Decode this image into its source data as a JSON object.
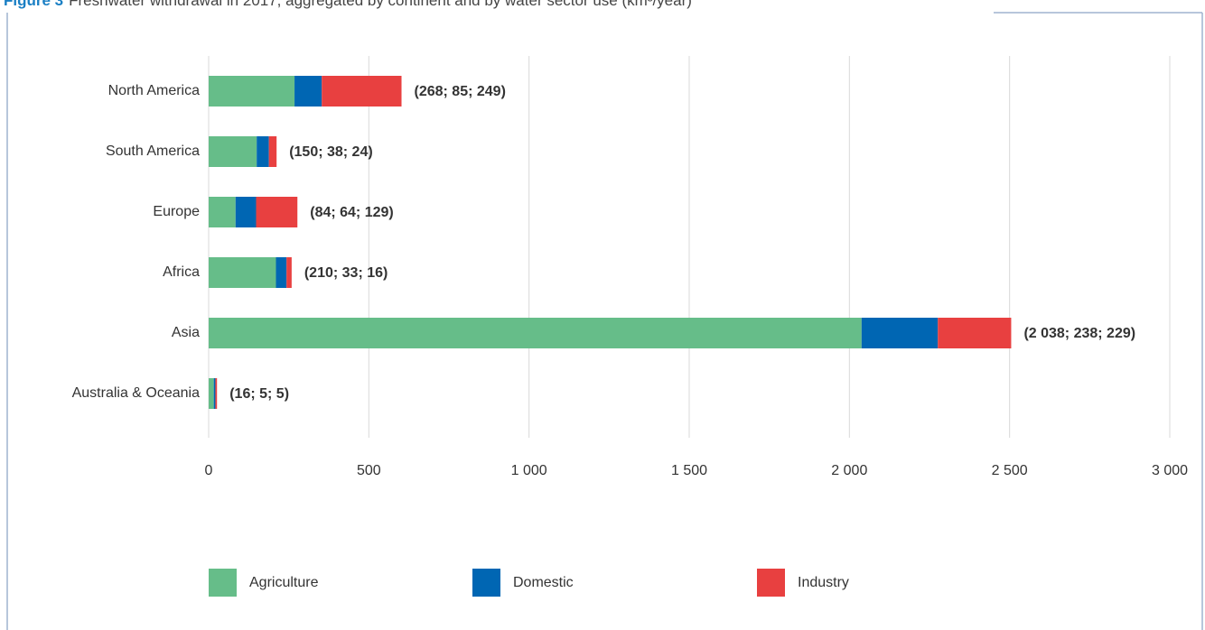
{
  "chart_data": {
    "type": "stacked_barh",
    "figure_label": "Figure 3",
    "title": "Freshwater withdrawal in 2017, aggregated by continent and by water sector use (km³/year)",
    "categories": [
      "North America",
      "South America",
      "Europe",
      "Africa",
      "Asia",
      "Australia & Oceania"
    ],
    "series": [
      {
        "name": "Agriculture",
        "color": "#66bd89",
        "values": [
          268,
          150,
          84,
          210,
          2038,
          16
        ]
      },
      {
        "name": "Domestic",
        "color": "#0066b3",
        "values": [
          85,
          38,
          64,
          33,
          238,
          5
        ]
      },
      {
        "name": "Industry",
        "color": "#e84040",
        "values": [
          249,
          24,
          129,
          16,
          229,
          5
        ]
      }
    ],
    "bar_labels": [
      "(268; 85; 249)",
      "(150; 38; 24)",
      "(84; 64; 129)",
      "(210; 33; 16)",
      "(2 038; 238; 229)",
      "(16; 5; 5)"
    ],
    "xlim": [
      0,
      3000
    ],
    "xticks": [
      0,
      500,
      {
        "value": 1000,
        "label": "1 000"
      },
      {
        "value": 1500,
        "label": "1 500"
      },
      {
        "value": 2000,
        "label": "2 000"
      },
      {
        "value": 2500,
        "label": "2 500"
      },
      {
        "value": 3000,
        "label": "3 000"
      }
    ],
    "grid": true,
    "legend": "bottom"
  }
}
